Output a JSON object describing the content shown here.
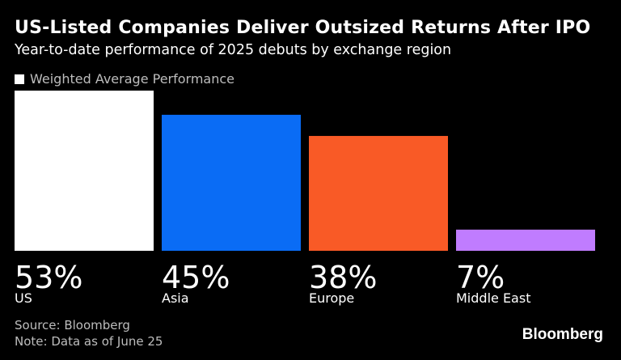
{
  "header": {
    "title": "US-Listed Companies Deliver Outsized Returns After IPO",
    "subtitle": "Year-to-date performance of 2025 debuts by exchange region"
  },
  "legend": {
    "label": "Weighted Average Performance",
    "color": "#ffffff"
  },
  "chart_data": {
    "type": "bar",
    "categories": [
      "US",
      "Asia",
      "Europe",
      "Middle East"
    ],
    "values": [
      53,
      45,
      38,
      7
    ],
    "value_labels": [
      "53%",
      "45%",
      "38%",
      "7%"
    ],
    "colors": [
      "#ffffff",
      "#0a6cf5",
      "#f95a26",
      "#c07cff"
    ],
    "series": [
      {
        "name": "Weighted Average Performance",
        "values": [
          53,
          45,
          38,
          7
        ]
      }
    ],
    "title": "US-Listed Companies Deliver Outsized Returns After IPO",
    "subtitle": "Year-to-date performance of 2025 debuts by exchange region",
    "xlabel": "",
    "ylabel": "",
    "ylim": [
      0,
      53
    ],
    "grid": false,
    "legend_position": "top-left"
  },
  "footer": {
    "source": "Source: Bloomberg",
    "note": "Note: Data as of June 25",
    "brand": "Bloomberg"
  }
}
